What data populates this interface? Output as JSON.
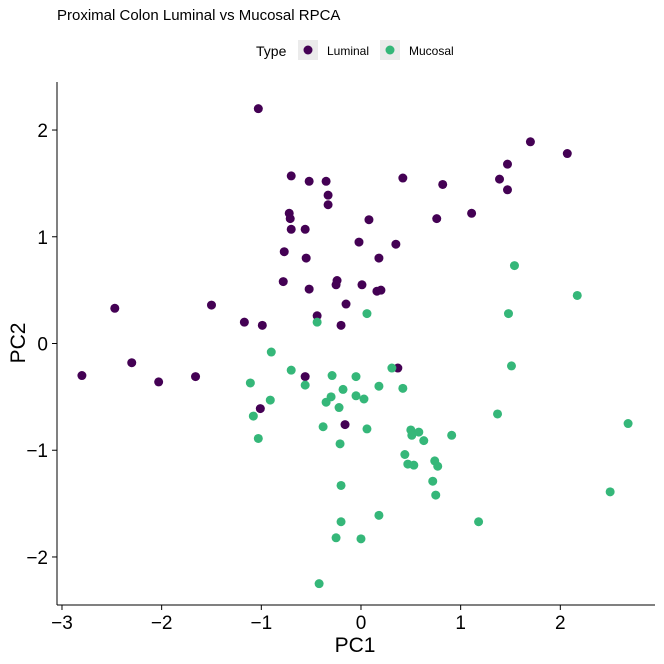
{
  "chart_data": {
    "type": "scatter",
    "title": "Proximal Colon Luminal vs Mucosal RPCA",
    "xlabel": "PC1",
    "ylabel": "PC2",
    "xlim": [
      -3.05,
      2.95
    ],
    "ylim": [
      -2.45,
      2.45
    ],
    "x_ticks": [
      -3,
      -2,
      -1,
      0,
      1,
      2
    ],
    "y_ticks": [
      -2,
      -1,
      0,
      1,
      2
    ],
    "grid": false,
    "legend": {
      "title": "Type",
      "placement": "top",
      "entries": [
        {
          "label": "Luminal",
          "color": "#440154"
        },
        {
          "label": "Mucosal",
          "color": "#35b779"
        }
      ]
    },
    "series": [
      {
        "name": "Luminal",
        "color": "#440154",
        "points": [
          [
            -1.03,
            2.2
          ],
          [
            1.7,
            1.89
          ],
          [
            2.07,
            1.78
          ],
          [
            1.47,
            1.68
          ],
          [
            1.39,
            1.54
          ],
          [
            1.47,
            1.44
          ],
          [
            -0.7,
            1.57
          ],
          [
            -0.52,
            1.52
          ],
          [
            -0.35,
            1.52
          ],
          [
            0.42,
            1.55
          ],
          [
            0.82,
            1.49
          ],
          [
            -0.33,
            1.39
          ],
          [
            -0.33,
            1.3
          ],
          [
            -0.72,
            1.22
          ],
          [
            -0.71,
            1.17
          ],
          [
            1.11,
            1.22
          ],
          [
            0.76,
            1.17
          ],
          [
            0.08,
            1.16
          ],
          [
            -0.56,
            1.07
          ],
          [
            -0.7,
            1.07
          ],
          [
            -0.02,
            0.95
          ],
          [
            0.35,
            0.93
          ],
          [
            -0.77,
            0.86
          ],
          [
            -0.55,
            0.8
          ],
          [
            0.18,
            0.8
          ],
          [
            -0.78,
            0.58
          ],
          [
            -0.24,
            0.59
          ],
          [
            -0.25,
            0.55
          ],
          [
            0.01,
            0.55
          ],
          [
            -0.52,
            0.51
          ],
          [
            0.16,
            0.49
          ],
          [
            0.2,
            0.5
          ],
          [
            -0.15,
            0.37
          ],
          [
            -2.47,
            0.33
          ],
          [
            -1.5,
            0.36
          ],
          [
            -1.17,
            0.2
          ],
          [
            -0.99,
            0.17
          ],
          [
            -0.44,
            0.26
          ],
          [
            -0.2,
            0.17
          ],
          [
            -2.8,
            -0.3
          ],
          [
            -2.3,
            -0.18
          ],
          [
            -2.03,
            -0.36
          ],
          [
            -1.66,
            -0.31
          ],
          [
            -0.56,
            -0.31
          ],
          [
            0.37,
            -0.23
          ],
          [
            -1.01,
            -0.61
          ],
          [
            -0.16,
            -0.76
          ]
        ]
      },
      {
        "name": "Mucosal",
        "color": "#35b779",
        "points": [
          [
            1.54,
            0.73
          ],
          [
            2.17,
            0.45
          ],
          [
            -0.44,
            0.2
          ],
          [
            0.06,
            0.28
          ],
          [
            1.48,
            0.28
          ],
          [
            -0.9,
            -0.08
          ],
          [
            1.51,
            -0.21
          ],
          [
            -0.7,
            -0.25
          ],
          [
            -0.29,
            -0.3
          ],
          [
            0.31,
            -0.23
          ],
          [
            -1.11,
            -0.37
          ],
          [
            -0.56,
            -0.39
          ],
          [
            -0.05,
            -0.31
          ],
          [
            0.18,
            -0.4
          ],
          [
            0.42,
            -0.42
          ],
          [
            -0.18,
            -0.43
          ],
          [
            -0.3,
            -0.5
          ],
          [
            -0.35,
            -0.55
          ],
          [
            -0.05,
            -0.49
          ],
          [
            0.03,
            -0.52
          ],
          [
            -0.91,
            -0.53
          ],
          [
            -0.22,
            -0.6
          ],
          [
            1.37,
            -0.66
          ],
          [
            -1.08,
            -0.68
          ],
          [
            -0.38,
            -0.78
          ],
          [
            0.06,
            -0.8
          ],
          [
            0.5,
            -0.81
          ],
          [
            0.51,
            -0.86
          ],
          [
            0.58,
            -0.83
          ],
          [
            0.63,
            -0.91
          ],
          [
            0.91,
            -0.86
          ],
          [
            -1.03,
            -0.89
          ],
          [
            -0.21,
            -0.94
          ],
          [
            2.68,
            -0.75
          ],
          [
            0.44,
            -1.04
          ],
          [
            0.74,
            -1.1
          ],
          [
            0.77,
            -1.15
          ],
          [
            0.47,
            -1.13
          ],
          [
            0.53,
            -1.14
          ],
          [
            0.72,
            -1.29
          ],
          [
            0.75,
            -1.42
          ],
          [
            -0.2,
            -1.33
          ],
          [
            2.5,
            -1.39
          ],
          [
            0.18,
            -1.61
          ],
          [
            -0.2,
            -1.67
          ],
          [
            1.18,
            -1.67
          ],
          [
            -0.25,
            -1.82
          ],
          [
            0.0,
            -1.83
          ],
          [
            -0.42,
            -2.25
          ]
        ]
      }
    ]
  }
}
